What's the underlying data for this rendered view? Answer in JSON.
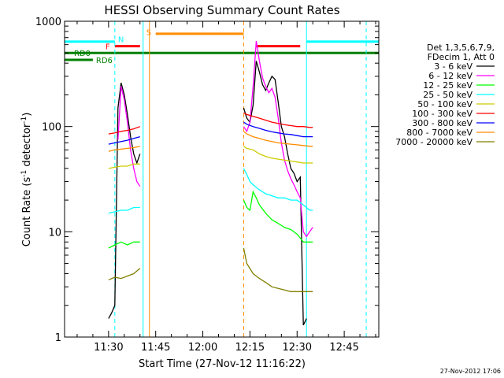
{
  "chart_data": {
    "type": "line",
    "title": "HESSI Observing Summary Count Rates",
    "xlabel": "Start Time (27-Nov-12 11:16:22)",
    "ylabel": "Count Rate (s",
    "ylabel_sup": "-1",
    "ylabel_rest": " detector",
    "ylabel_sup2": "-1",
    "ylabel_close": ")",
    "y_scale": "log",
    "xlim": [
      "11:16",
      "12:56"
    ],
    "ylim": [
      1,
      1000
    ],
    "x_ticks": [
      "11:30",
      "11:45",
      "12:00",
      "12:15",
      "12:30",
      "12:45"
    ],
    "y_ticks": [
      "1",
      "10",
      "100",
      "1000"
    ],
    "grid": false,
    "legend_position": "right",
    "legend_header": [
      "Det 1,3,5,6,7,9,",
      "FDecim 1, Att 0"
    ],
    "timestamp": "27-Nov-2012 17:06",
    "series": [
      {
        "name": "3 - 6 keV",
        "color": "#000000",
        "segments": [
          {
            "x": [
              "11:30",
              "11:31",
              "11:32",
              "11:33",
              "11:34",
              "11:35",
              "11:36",
              "11:37",
              "11:38",
              "11:39",
              "11:40"
            ],
            "y": [
              1.5,
              1.7,
              2.0,
              150,
              260,
              200,
              130,
              80,
              55,
              45,
              55
            ]
          },
          {
            "x": [
              "12:13",
              "12:14",
              "12:15",
              "12:16",
              "12:17",
              "12:18",
              "12:19",
              "12:20",
              "12:21",
              "12:22",
              "12:23",
              "12:24",
              "12:25",
              "12:26",
              "12:27",
              "12:28",
              "12:29",
              "12:30",
              "12:31",
              "12:32",
              "12:33"
            ],
            "y": [
              150,
              120,
              110,
              160,
              420,
              330,
              250,
              220,
              260,
              300,
              280,
              170,
              100,
              80,
              55,
              40,
              36,
              30,
              33,
              1.3,
              1.5
            ]
          }
        ]
      },
      {
        "name": "6 - 12 keV",
        "color": "#ff00ff",
        "segments": [
          {
            "x": [
              "11:33",
              "11:34",
              "11:35",
              "11:36",
              "11:37",
              "11:38",
              "11:39",
              "11:40"
            ],
            "y": [
              75,
              240,
              180,
              110,
              60,
              40,
              30,
              27
            ]
          },
          {
            "x": [
              "12:13",
              "12:14",
              "12:15",
              "12:16",
              "12:17",
              "12:18",
              "12:19",
              "12:20",
              "12:21",
              "12:22",
              "12:23",
              "12:24",
              "12:25",
              "12:26",
              "12:27",
              "12:28",
              "12:29",
              "12:30",
              "12:31",
              "12:32",
              "12:33",
              "12:34",
              "12:35"
            ],
            "y": [
              100,
              90,
              110,
              240,
              650,
              420,
              290,
              240,
              210,
              230,
              190,
              120,
              70,
              48,
              38,
              32,
              28,
              24,
              21,
              10,
              9,
              10,
              11
            ]
          }
        ]
      },
      {
        "name": "12 - 25 keV",
        "color": "#00ff00",
        "segments": [
          {
            "x": [
              "11:30",
              "11:32",
              "11:34",
              "11:36",
              "11:38",
              "11:40"
            ],
            "y": [
              7,
              7.5,
              8,
              7.5,
              8,
              8
            ]
          },
          {
            "x": [
              "12:13",
              "12:14",
              "12:15",
              "12:16",
              "12:17",
              "12:18",
              "12:20",
              "12:22",
              "12:24",
              "12:26",
              "12:28",
              "12:30",
              "12:32",
              "12:34",
              "12:35"
            ],
            "y": [
              20,
              17,
              16,
              24,
              21,
              18,
              15,
              13,
              12,
              11,
              10.5,
              9.5,
              8,
              8,
              8
            ]
          }
        ]
      },
      {
        "name": "25 - 50 keV",
        "color": "#00ffff",
        "segments": [
          {
            "x": [
              "11:30",
              "11:32",
              "11:34",
              "11:36",
              "11:38",
              "11:40"
            ],
            "y": [
              15,
              15.5,
              16,
              16,
              17,
              17
            ]
          },
          {
            "x": [
              "12:13",
              "12:14",
              "12:15",
              "12:16",
              "12:18",
              "12:20",
              "12:22",
              "12:24",
              "12:26",
              "12:28",
              "12:30",
              "12:32",
              "12:34",
              "12:35"
            ],
            "y": [
              40,
              35,
              30,
              28,
              25,
              23,
              22,
              21,
              21,
              20,
              20,
              18,
              16,
              16
            ]
          }
        ]
      },
      {
        "name": "50 - 100 keV",
        "color": "#cccc00",
        "segments": [
          {
            "x": [
              "11:30",
              "11:32",
              "11:34",
              "11:36",
              "11:38",
              "11:40"
            ],
            "y": [
              40,
              41,
              42,
              42,
              44,
              44
            ]
          },
          {
            "x": [
              "12:13",
              "12:14",
              "12:16",
              "12:18",
              "12:20",
              "12:22",
              "12:24",
              "12:26",
              "12:28",
              "12:30",
              "12:32",
              "12:34",
              "12:35"
            ],
            "y": [
              65,
              62,
              60,
              55,
              52,
              50,
              49,
              48,
              47,
              46,
              45,
              45,
              45
            ]
          }
        ]
      },
      {
        "name": "100 - 300 keV",
        "color": "#ff0000",
        "segments": [
          {
            "x": [
              "11:30",
              "11:32",
              "11:34",
              "11:36",
              "11:38",
              "11:40"
            ],
            "y": [
              85,
              87,
              90,
              92,
              95,
              100
            ]
          },
          {
            "x": [
              "12:13",
              "12:14",
              "12:16",
              "12:18",
              "12:20",
              "12:22",
              "12:24",
              "12:26",
              "12:28",
              "12:30",
              "12:32",
              "12:34",
              "12:35"
            ],
            "y": [
              135,
              130,
              125,
              120,
              115,
              110,
              107,
              104,
              102,
              100,
              100,
              98,
              98
            ]
          }
        ]
      },
      {
        "name": "300 - 800 keV",
        "color": "#0000ff",
        "segments": [
          {
            "x": [
              "11:30",
              "11:32",
              "11:34",
              "11:36",
              "11:38",
              "11:40"
            ],
            "y": [
              68,
              70,
              72,
              74,
              77,
              80
            ]
          },
          {
            "x": [
              "12:13",
              "12:14",
              "12:16",
              "12:18",
              "12:20",
              "12:22",
              "12:24",
              "12:26",
              "12:28",
              "12:30",
              "12:32",
              "12:34",
              "12:35"
            ],
            "y": [
              110,
              105,
              100,
              96,
              92,
              89,
              87,
              85,
              84,
              82,
              80,
              80,
              80
            ]
          }
        ]
      },
      {
        "name": "800 - 7000 keV",
        "color": "#ff8c00",
        "segments": [
          {
            "x": [
              "11:30",
              "11:32",
              "11:34",
              "11:36",
              "11:38",
              "11:40"
            ],
            "y": [
              58,
              60,
              61,
              62,
              63,
              65
            ]
          },
          {
            "x": [
              "12:13",
              "12:14",
              "12:16",
              "12:18",
              "12:20",
              "12:22",
              "12:24",
              "12:26",
              "12:28",
              "12:30",
              "12:32",
              "12:34",
              "12:35"
            ],
            "y": [
              90,
              85,
              80,
              77,
              74,
              72,
              70,
              69,
              68,
              67,
              66,
              65,
              65
            ]
          }
        ]
      },
      {
        "name": "7000 - 20000 keV",
        "color": "#808000",
        "segments": [
          {
            "x": [
              "11:30",
              "11:32",
              "11:34",
              "11:36",
              "11:38",
              "11:40"
            ],
            "y": [
              3.5,
              3.7,
              3.6,
              3.8,
              4.0,
              4.5
            ]
          },
          {
            "x": [
              "12:13",
              "12:14",
              "12:16",
              "12:18",
              "12:20",
              "12:22",
              "12:24",
              "12:26",
              "12:28",
              "12:30",
              "12:32",
              "12:34",
              "12:35"
            ],
            "y": [
              7,
              5,
              4,
              3.6,
              3.3,
              3.0,
              2.9,
              2.8,
              2.7,
              2.7,
              2.7,
              2.7,
              2.7
            ]
          }
        ]
      }
    ],
    "flags": [
      {
        "label": "",
        "color": "#00ffff",
        "segments": [
          [
            "11:16",
            "11:32"
          ],
          [
            "12:33",
            "12:56"
          ]
        ],
        "y": 640
      },
      {
        "label": "N",
        "color": "#00ffff",
        "label_x": "11:33",
        "label_y": 680
      },
      {
        "label": "S",
        "color": "#ff8c00",
        "segments": [
          [
            "11:45",
            "12:13"
          ]
        ],
        "y": 760,
        "label_x": "11:42",
        "label_y": 790
      },
      {
        "label": "F",
        "color": "#ff0000",
        "segments": [
          [
            "11:32",
            "11:40"
          ],
          [
            "12:17",
            "12:31"
          ]
        ],
        "y": 580,
        "label_x": "11:29",
        "label_y": 580
      },
      {
        "label": "RD0",
        "color": "#008000",
        "segments": [
          [
            "11:16",
            "12:56"
          ]
        ],
        "y": 500,
        "label_x": "11:19",
        "label_y": 500
      },
      {
        "label": "RD6",
        "color": "#008000",
        "segments": [
          [
            "11:16",
            "11:25"
          ]
        ],
        "y": 430,
        "label_x": "11:26",
        "label_y": 430
      }
    ],
    "vertical_lines": [
      {
        "x": "11:16",
        "color": "#00ffff",
        "style": "solid"
      },
      {
        "x": "11:32",
        "color": "#00ffff",
        "style": "dashed"
      },
      {
        "x": "11:41",
        "color": "#00ffff",
        "style": "solid"
      },
      {
        "x": "11:43",
        "color": "#ff8c00",
        "style": "solid"
      },
      {
        "x": "12:13",
        "color": "#ff8c00",
        "style": "dashed"
      },
      {
        "x": "12:33",
        "color": "#00ffff",
        "style": "solid"
      },
      {
        "x": "12:52",
        "color": "#00ffff",
        "style": "dashed"
      }
    ]
  }
}
